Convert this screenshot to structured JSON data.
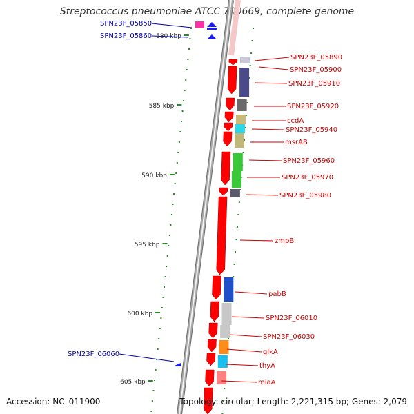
{
  "title": "Streptococcus pneumoniae ATCC 700669, complete genome",
  "footer": {
    "accession": "Accession: NC_011900",
    "topology": "Topology: circular; Length: 2,221,315 bp; Genes: 2,079"
  },
  "colors": {
    "forward_label": "#cc0000",
    "reverse_label": "#0000aa",
    "gene_arrow": "#ff0000",
    "backbone": "#8c8c8c",
    "tick": "#2a8a2a"
  },
  "scale_labels": [
    {
      "kbp": 580,
      "text": "580 kbp"
    },
    {
      "kbp": 585,
      "text": "585 kbp"
    },
    {
      "kbp": 590,
      "text": "590 kbp"
    },
    {
      "kbp": 595,
      "text": "595 kbp"
    },
    {
      "kbp": 600,
      "text": "600 kbp"
    },
    {
      "kbp": 605,
      "text": "605 kbp"
    }
  ],
  "reverse_genes": [
    {
      "name": "SPN23F_05850",
      "color": "#ff2fa8"
    },
    {
      "name": "SPN23F_05860",
      "color": "#1a1aff"
    },
    {
      "name": "SPN23F_06060",
      "color": "#1a1aff"
    }
  ],
  "forward_genes": [
    {
      "name": "SPN23F_05890",
      "color": "#1a2a8a"
    },
    {
      "name": "SPN23F_05900",
      "color": "#c8c8d8"
    },
    {
      "name": "SPN23F_05910",
      "color": "#4a4a8a"
    },
    {
      "name": "SPN23F_05920",
      "color": "#6a6a6a"
    },
    {
      "name": "ccdA",
      "color": "#c8bb7a"
    },
    {
      "name": "SPN23F_05940",
      "color": "#28d8e8"
    },
    {
      "name": "msrAB",
      "color": "#c0b87a"
    },
    {
      "name": "SPN23F_05960",
      "color": "#3ac83a"
    },
    {
      "name": "SPN23F_05970",
      "color": "#3ac83a"
    },
    {
      "name": "SPN23F_05980",
      "color": "#5a5a6a"
    },
    {
      "name": "zmpB",
      "color": "#ff0000"
    },
    {
      "name": "pabB",
      "color": "#2050c8"
    },
    {
      "name": "SPN23F_06010",
      "color": "#c8c8c8"
    },
    {
      "name": "SPN23F_06030",
      "color": "#c8c8c8"
    },
    {
      "name": "glkA",
      "color": "#ff8c1a"
    },
    {
      "name": "thyA",
      "color": "#18c0f0"
    },
    {
      "name": "miaA",
      "color": "#ff8080"
    }
  ]
}
